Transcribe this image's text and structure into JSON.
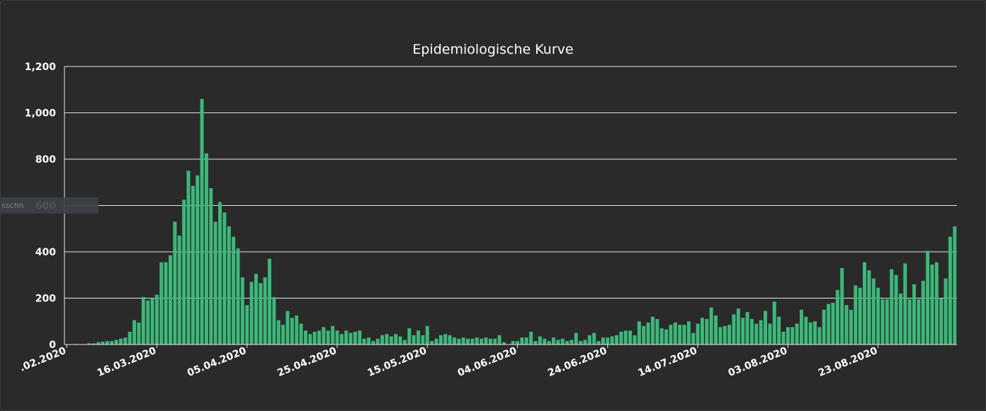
{
  "chart_data": {
    "type": "bar",
    "title": "Epidemiologische Kurve",
    "xlabel": "",
    "ylabel": "",
    "ylim": [
      0,
      1200
    ],
    "yticks": [
      "0",
      "200",
      "400",
      "600",
      "800",
      "1,000",
      "1,200"
    ],
    "ytick_values": [
      0,
      200,
      400,
      600,
      800,
      1000,
      1200
    ],
    "x_tick_labels": [
      ".02.2020",
      "16.03.2020",
      "05.04.2020",
      "25.04.2020",
      "15.05.2020",
      "04.06.2020",
      "24.06.2020",
      "14.07.2020",
      "03.08.2020",
      "23.08.2020"
    ],
    "x_tick_dates": [
      "2020-02-25",
      "2020-03-16",
      "2020-04-05",
      "2020-04-25",
      "2020-05-15",
      "2020-06-04",
      "2020-06-24",
      "2020-07-14",
      "2020-08-03",
      "2020-08-23"
    ],
    "grid": true,
    "bar_color": "#3db87a",
    "first_date": "2020-02-25",
    "values": [
      0,
      0,
      2,
      0,
      0,
      5,
      5,
      10,
      12,
      15,
      15,
      20,
      25,
      30,
      55,
      105,
      95,
      205,
      190,
      200,
      215,
      355,
      355,
      385,
      530,
      470,
      625,
      750,
      685,
      730,
      1060,
      825,
      675,
      530,
      615,
      570,
      510,
      465,
      415,
      290,
      170,
      270,
      305,
      265,
      290,
      370,
      205,
      105,
      85,
      145,
      115,
      125,
      90,
      60,
      45,
      55,
      60,
      75,
      60,
      80,
      60,
      45,
      60,
      50,
      55,
      60,
      25,
      30,
      15,
      25,
      40,
      45,
      35,
      45,
      35,
      20,
      70,
      40,
      60,
      40,
      80,
      15,
      25,
      40,
      45,
      40,
      30,
      25,
      30,
      25,
      25,
      30,
      25,
      30,
      25,
      25,
      40,
      10,
      0,
      15,
      15,
      30,
      30,
      55,
      15,
      35,
      25,
      15,
      30,
      20,
      25,
      15,
      20,
      50,
      15,
      20,
      40,
      50,
      15,
      30,
      30,
      35,
      40,
      55,
      60,
      60,
      40,
      100,
      80,
      95,
      120,
      110,
      70,
      65,
      85,
      95,
      85,
      85,
      100,
      50,
      90,
      115,
      110,
      160,
      125,
      75,
      80,
      85,
      130,
      155,
      115,
      140,
      110,
      90,
      105,
      145,
      90,
      185,
      120,
      55,
      75,
      75,
      90,
      150,
      120,
      95,
      100,
      75,
      150,
      175,
      180,
      235,
      330,
      170,
      150,
      255,
      245,
      355,
      320,
      285,
      245,
      195,
      195,
      325,
      300,
      220,
      350,
      195,
      260,
      195,
      275,
      405,
      345,
      355,
      200,
      285,
      465,
      510
    ]
  }
}
